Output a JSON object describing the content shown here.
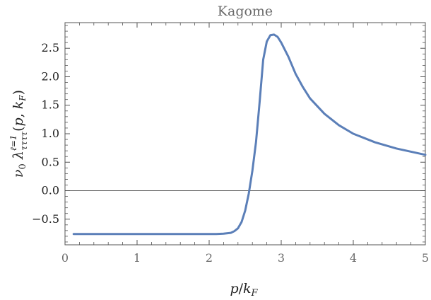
{
  "chart_data": {
    "type": "line",
    "title": "Kagome",
    "xlabel": "p/k_F",
    "ylabel": "ν₀ λ^{ℓ=1}_{ττττ}(p, k_F)",
    "xlim": [
      0,
      5
    ],
    "ylim": [
      -0.95,
      2.95
    ],
    "xticks": [
      0,
      1,
      2,
      3,
      4,
      5
    ],
    "yticks": [
      -0.5,
      0.0,
      0.5,
      1.0,
      1.5,
      2.0,
      2.5
    ],
    "xtick_labels": [
      "0",
      "1",
      "2",
      "3",
      "4",
      "5"
    ],
    "ytick_labels": [
      "−0.5",
      "0.0",
      "0.5",
      "1.0",
      "1.5",
      "2.0",
      "2.5"
    ],
    "zero_line": true,
    "grid": false,
    "series_color": "#5b7fb8",
    "series": [
      {
        "x": [
          0.12,
          0.5,
          1.0,
          1.5,
          2.0,
          2.1,
          2.2,
          2.3,
          2.35,
          2.4,
          2.45,
          2.5,
          2.55,
          2.6,
          2.65,
          2.7,
          2.75,
          2.8,
          2.85,
          2.9,
          2.95,
          3.0,
          3.1,
          3.2,
          3.3,
          3.4,
          3.6,
          3.8,
          4.0,
          4.3,
          4.6,
          5.0
        ],
        "y": [
          -0.76,
          -0.76,
          -0.76,
          -0.76,
          -0.76,
          -0.76,
          -0.755,
          -0.74,
          -0.71,
          -0.66,
          -0.55,
          -0.35,
          -0.05,
          0.35,
          0.85,
          1.55,
          2.3,
          2.62,
          2.73,
          2.74,
          2.7,
          2.6,
          2.35,
          2.05,
          1.82,
          1.62,
          1.35,
          1.15,
          1.0,
          0.85,
          0.74,
          0.63
        ]
      }
    ]
  }
}
